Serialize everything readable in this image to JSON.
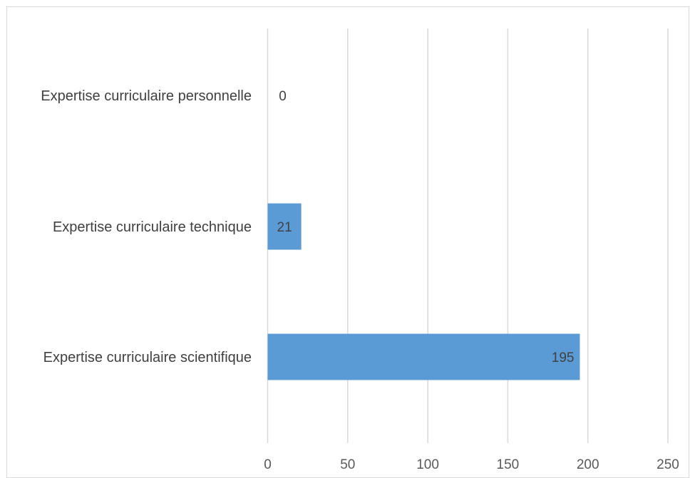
{
  "chart_data": {
    "type": "bar",
    "orientation": "horizontal",
    "title": "",
    "xlabel": "",
    "ylabel": "",
    "categories": [
      "Expertise curriculaire personnelle",
      "Expertise curriculaire technique",
      "Expertise curriculaire scientifique"
    ],
    "values": [
      0,
      21,
      195
    ],
    "data_labels": [
      "0",
      "21",
      "195"
    ],
    "xlim": [
      0,
      250
    ],
    "x_ticks": [
      0,
      50,
      100,
      150,
      200,
      250
    ],
    "x_tick_labels": [
      "0",
      "50",
      "100",
      "150",
      "200",
      "250"
    ],
    "grid": "vertical",
    "legend": "none",
    "bar_color": "#5b9bd5",
    "grid_color": "#d9d9d9",
    "text_color": "#404040"
  }
}
